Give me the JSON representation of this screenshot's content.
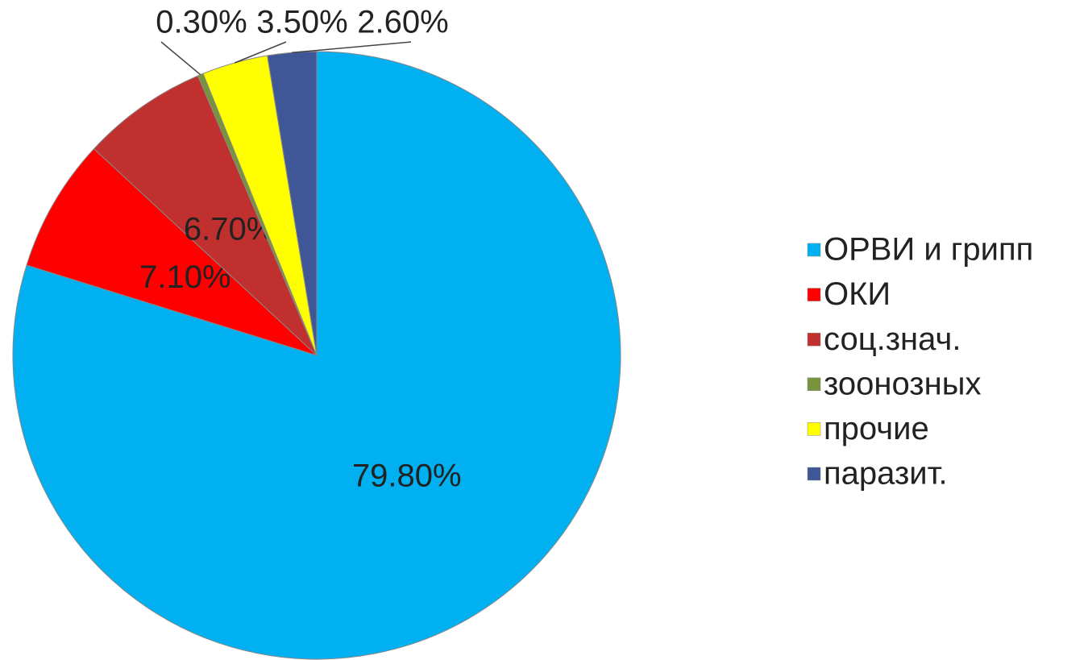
{
  "chart_data": {
    "type": "pie",
    "categories": [
      "ОРВИ и грипп",
      "ОКИ",
      "соц.знач.",
      "зоонозных",
      "прочие",
      "паразит."
    ],
    "values": [
      79.8,
      7.1,
      6.7,
      0.3,
      3.5,
      2.6
    ],
    "value_labels": [
      "79.80%",
      "7.10%",
      "6.70%",
      "0.30%",
      "3.50%",
      "2.60%"
    ],
    "colors": [
      "#00b0f0",
      "#ff0000",
      "#c0302e",
      "#77933c",
      "#ffff00",
      "#3f5796"
    ],
    "legend": "right"
  }
}
